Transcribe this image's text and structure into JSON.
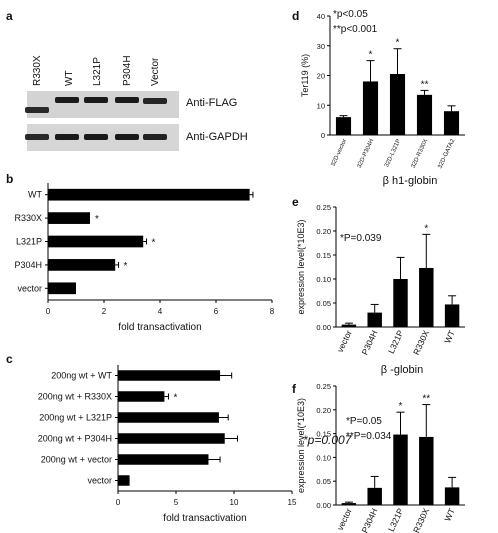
{
  "panels": {
    "a": {
      "letter": "a",
      "lanes": [
        "R330X",
        "WT",
        "L321P",
        "P304H",
        "Vector"
      ],
      "blots": [
        {
          "label": "Anti-FLAG",
          "bands": [
            0.8,
            1.0,
            1.0,
            1.0,
            0.85
          ]
        },
        {
          "label": "Anti-GAPDH",
          "bands": [
            0.8,
            1.0,
            1.0,
            1.0,
            0.9
          ]
        }
      ]
    }
  },
  "chart_data": [
    {
      "panel": "b",
      "type": "bar",
      "orientation": "horizontal",
      "categories": [
        "WT",
        "R330X",
        "L321P",
        "P304H",
        "vector"
      ],
      "values": [
        7.2,
        1.5,
        3.4,
        2.4,
        1.0
      ],
      "errors": [
        0.12,
        0.0,
        0.12,
        0.12,
        0.0
      ],
      "annotations": [
        "",
        "*",
        "*",
        "*",
        ""
      ],
      "xlabel": "fold transactivation",
      "xlim": [
        0,
        8
      ],
      "xticks": [
        0,
        2,
        4,
        6,
        8
      ],
      "color": "#000000"
    },
    {
      "panel": "c",
      "type": "bar",
      "orientation": "horizontal",
      "categories": [
        "200ng wt + WT",
        "200ng wt + R330X",
        "200ng wt + L321P",
        "200ng wt + P304H",
        "200ng wt + vector",
        "vector"
      ],
      "values": [
        8.8,
        4.0,
        8.7,
        9.2,
        7.8,
        1.0
      ],
      "errors": [
        1.0,
        0.35,
        0.8,
        1.1,
        1.0,
        0.0
      ],
      "annotations": [
        "",
        "*",
        "",
        "",
        "",
        ""
      ],
      "side_note": "*p=0.007",
      "xlabel": "fold transactivation",
      "xlim": [
        0,
        15
      ],
      "xticks": [
        0,
        5,
        10,
        15
      ],
      "color": "#000000"
    },
    {
      "panel": "d",
      "type": "bar",
      "orientation": "vertical",
      "categories": [
        "32D-vector",
        "32D-P304H",
        "32D-L321P",
        "32D-R330X",
        "32D-GATA2"
      ],
      "values": [
        6.0,
        18.0,
        20.5,
        13.5,
        8.0
      ],
      "errors": [
        0.5,
        7.0,
        8.5,
        1.5,
        1.8
      ],
      "annotations": [
        "",
        "*",
        "*",
        "**",
        ""
      ],
      "legend_lines": [
        "*p<0.05",
        "**p<0.001"
      ],
      "ylabel": "Ter119 (%)",
      "ylim": [
        0,
        40
      ],
      "yticks": [
        0,
        10,
        20,
        30,
        40
      ],
      "color": "#000000"
    },
    {
      "panel": "e",
      "title": "β h1-globin",
      "type": "bar",
      "orientation": "vertical",
      "categories": [
        "vector",
        "P304H",
        "L321P",
        "R330X",
        "WT"
      ],
      "values": [
        0.005,
        0.03,
        0.1,
        0.123,
        0.047
      ],
      "errors": [
        0.003,
        0.017,
        0.045,
        0.07,
        0.018
      ],
      "annotations": [
        "",
        "",
        "",
        "*",
        ""
      ],
      "legend_lines": [
        "*P=0.039"
      ],
      "ylabel": "expression level(*10E3)",
      "ylim": [
        0,
        0.25
      ],
      "yticks": [
        0.0,
        0.05,
        0.1,
        0.15,
        0.2,
        0.25
      ],
      "ytick_labels": [
        "0.00",
        "0.05",
        "0.10",
        "0.15",
        "0.20",
        "0.25"
      ],
      "color": "#000000"
    },
    {
      "panel": "f",
      "title": "β -globin",
      "type": "bar",
      "orientation": "vertical",
      "categories": [
        "vector",
        "P304H",
        "L321P",
        "R330X",
        "WT"
      ],
      "values": [
        0.004,
        0.036,
        0.148,
        0.143,
        0.037
      ],
      "errors": [
        0.002,
        0.024,
        0.047,
        0.068,
        0.021
      ],
      "annotations": [
        "",
        "",
        "*",
        "**",
        ""
      ],
      "legend_lines": [
        "*P=0.05",
        "**P=0.034"
      ],
      "ylabel": "expression level(*10E3)",
      "ylim": [
        0,
        0.25
      ],
      "yticks": [
        0.0,
        0.05,
        0.1,
        0.15,
        0.2,
        0.25
      ],
      "ytick_labels": [
        "0.00",
        "0.05",
        "0.10",
        "0.15",
        "0.20",
        "0.25"
      ],
      "color": "#000000"
    }
  ]
}
